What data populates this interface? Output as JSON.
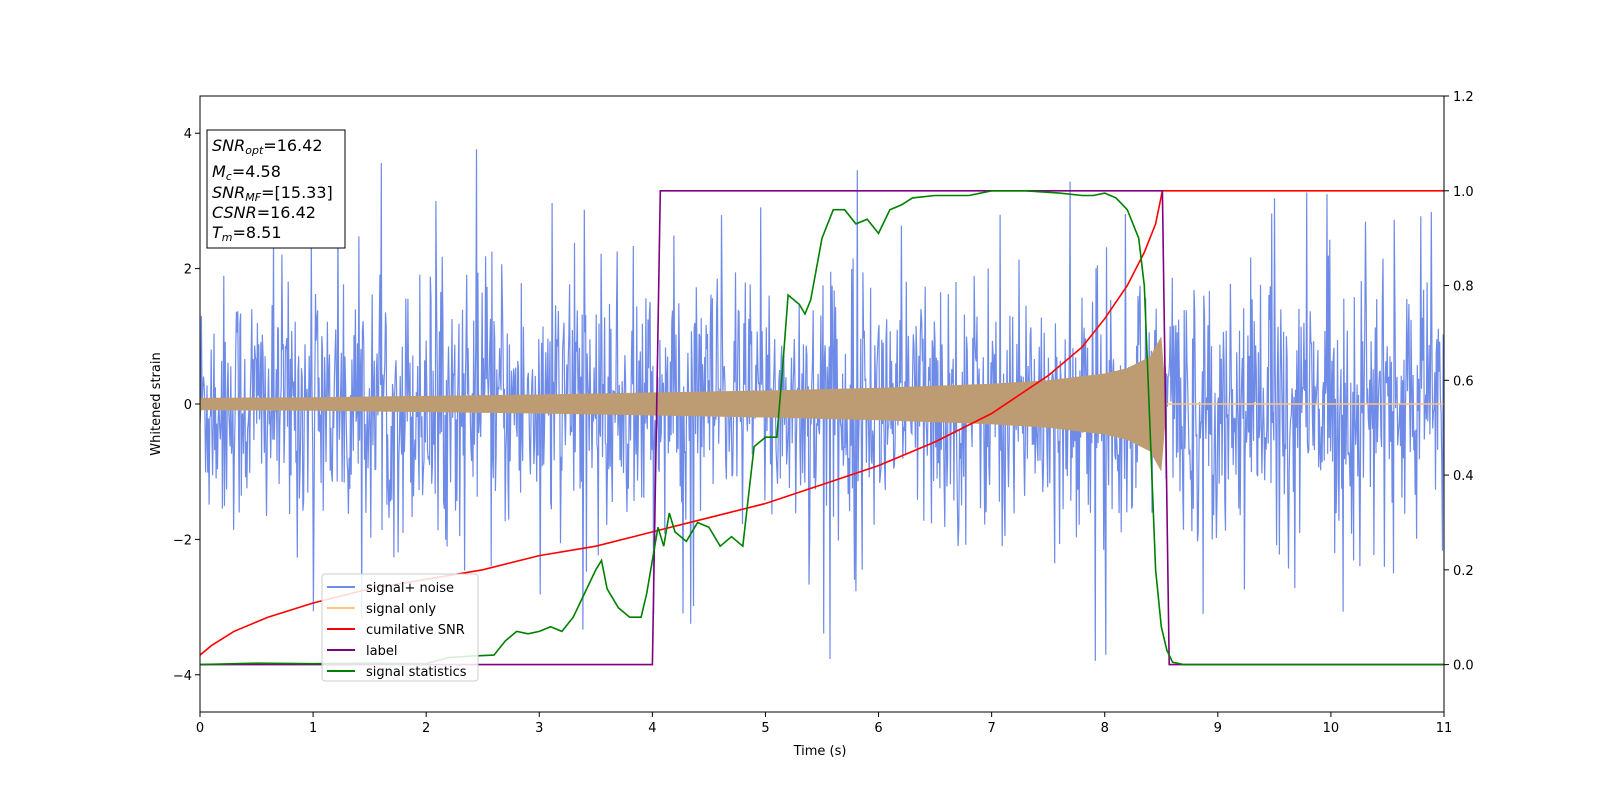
{
  "chart_data": {
    "type": "line",
    "xlabel": "Time (s)",
    "ylabel": "Whitened strain",
    "xlim": [
      0,
      11
    ],
    "ylim": [
      -4.55,
      4.55
    ],
    "y2lim": [
      -0.1,
      1.2
    ],
    "x_ticks": [
      "0",
      "1",
      "2",
      "3",
      "4",
      "5",
      "6",
      "7",
      "8",
      "9",
      "10",
      "11"
    ],
    "y_ticks": [
      "4",
      "2",
      "0",
      "−2",
      "−4"
    ],
    "y2_ticks": [
      "1.2",
      "1.0",
      "0.8",
      "0.6",
      "0.4",
      "0.2",
      "0.0"
    ],
    "legend_position": "lower-left",
    "info_box": {
      "snr_opt": "16.42",
      "mc": "4.58",
      "snr_mf": "[15.33]",
      "csnr": "16.42",
      "tm": "8.51"
    },
    "series": [
      {
        "name": "signal+ noise",
        "color": "#6f8be8",
        "axis": "left",
        "noise": {
          "x_start": 0,
          "x_end": 11,
          "sigma": 1.1,
          "peak_max": 4.15,
          "peak_min": -4.15
        }
      },
      {
        "name": "signal only",
        "color": "#ffc37a",
        "axis": "left",
        "envelope": {
          "x": [
            0,
            1,
            2,
            3,
            4,
            5,
            6,
            7,
            7.5,
            8,
            8.2,
            8.4,
            8.5,
            8.55
          ],
          "amp": [
            0.09,
            0.1,
            0.12,
            0.14,
            0.17,
            0.2,
            0.24,
            0.3,
            0.35,
            0.45,
            0.53,
            0.7,
            1.0,
            0.0
          ]
        }
      },
      {
        "name": "cumilative SNR",
        "color": "#ff0000",
        "axis": "right",
        "x": [
          0,
          0.1,
          0.3,
          0.6,
          1,
          1.5,
          2,
          2.5,
          3,
          3.5,
          4,
          4.5,
          5,
          5.5,
          6,
          6.5,
          7,
          7.5,
          7.8,
          8.0,
          8.2,
          8.35,
          8.45,
          8.51,
          11
        ],
        "y": [
          0.02,
          0.04,
          0.07,
          0.1,
          0.13,
          0.16,
          0.18,
          0.2,
          0.23,
          0.25,
          0.28,
          0.31,
          0.34,
          0.38,
          0.42,
          0.47,
          0.53,
          0.61,
          0.67,
          0.73,
          0.8,
          0.87,
          0.93,
          1.0,
          1.0
        ]
      },
      {
        "name": "label",
        "color": "#800080",
        "axis": "right",
        "x": [
          0,
          4.0,
          4.07,
          8.51,
          8.57,
          11
        ],
        "y": [
          0,
          0,
          1,
          1,
          0,
          0
        ]
      },
      {
        "name": "signal statistics",
        "color": "#008000",
        "axis": "right",
        "x": [
          0,
          0.5,
          1,
          1.5,
          2,
          2.2,
          2.4,
          2.6,
          2.7,
          2.8,
          2.9,
          3.0,
          3.1,
          3.2,
          3.3,
          3.4,
          3.5,
          3.55,
          3.6,
          3.7,
          3.8,
          3.9,
          3.95,
          4.05,
          4.1,
          4.15,
          4.2,
          4.3,
          4.4,
          4.5,
          4.6,
          4.7,
          4.8,
          4.9,
          4.95,
          5.0,
          5.1,
          5.15,
          5.2,
          5.3,
          5.35,
          5.4,
          5.5,
          5.6,
          5.7,
          5.8,
          5.9,
          6.0,
          6.1,
          6.2,
          6.3,
          6.5,
          6.8,
          7.0,
          7.3,
          7.6,
          7.8,
          7.9,
          8.0,
          8.1,
          8.2,
          8.3,
          8.35,
          8.4,
          8.45,
          8.5,
          8.55,
          8.6,
          8.7,
          9,
          11
        ],
        "y": [
          0.0,
          0.003,
          0.002,
          0.003,
          0.002,
          0.015,
          0.018,
          0.02,
          0.05,
          0.07,
          0.065,
          0.07,
          0.08,
          0.07,
          0.1,
          0.15,
          0.2,
          0.22,
          0.16,
          0.12,
          0.1,
          0.1,
          0.15,
          0.29,
          0.25,
          0.32,
          0.28,
          0.26,
          0.3,
          0.29,
          0.25,
          0.27,
          0.25,
          0.46,
          0.47,
          0.48,
          0.48,
          0.62,
          0.78,
          0.76,
          0.74,
          0.77,
          0.9,
          0.96,
          0.96,
          0.93,
          0.94,
          0.91,
          0.96,
          0.97,
          0.985,
          0.99,
          0.99,
          1.0,
          1.0,
          0.995,
          0.99,
          0.99,
          0.995,
          0.985,
          0.96,
          0.9,
          0.8,
          0.5,
          0.2,
          0.08,
          0.03,
          0.005,
          0.0,
          0.0,
          0.0
        ]
      }
    ]
  }
}
